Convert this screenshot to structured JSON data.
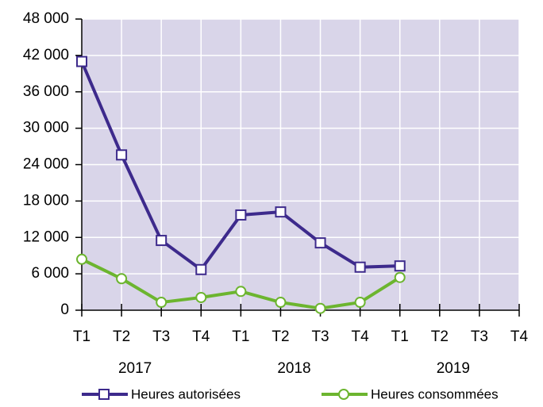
{
  "chart_data": {
    "type": "line",
    "categories": [
      "T1",
      "T2",
      "T3",
      "T4",
      "T1",
      "T2",
      "T3",
      "T4",
      "T1",
      "T2",
      "T3",
      "T4"
    ],
    "groups": [
      "2017",
      "2018",
      "2019"
    ],
    "series": [
      {
        "name": "Heures autorisées",
        "color": "#3d2a8c",
        "marker": "square",
        "values": [
          41000,
          25600,
          11500,
          6700,
          15700,
          16200,
          11100,
          7100,
          7300,
          null,
          null,
          null
        ]
      },
      {
        "name": "Heures consommées",
        "color": "#6cb52f",
        "marker": "circle",
        "values": [
          8400,
          5200,
          1300,
          2100,
          3100,
          1300,
          300,
          1300,
          5400,
          null,
          null,
          null
        ]
      }
    ],
    "ylim": [
      0,
      48000
    ],
    "yticks": [
      0,
      {
        "value": 6000,
        "label": "6 000"
      },
      {
        "value": 12000,
        "label": "12 000"
      },
      {
        "value": 18000,
        "label": "18 000"
      },
      {
        "value": 24000,
        "label": "24 000"
      },
      {
        "value": 30000,
        "label": "30 000"
      },
      {
        "value": 36000,
        "label": "36 000"
      },
      {
        "value": 42000,
        "label": "42 000"
      },
      {
        "value": 48000,
        "label": "48 000"
      }
    ],
    "grid": true,
    "legend": "bottom",
    "background": "#d9d5e9"
  }
}
